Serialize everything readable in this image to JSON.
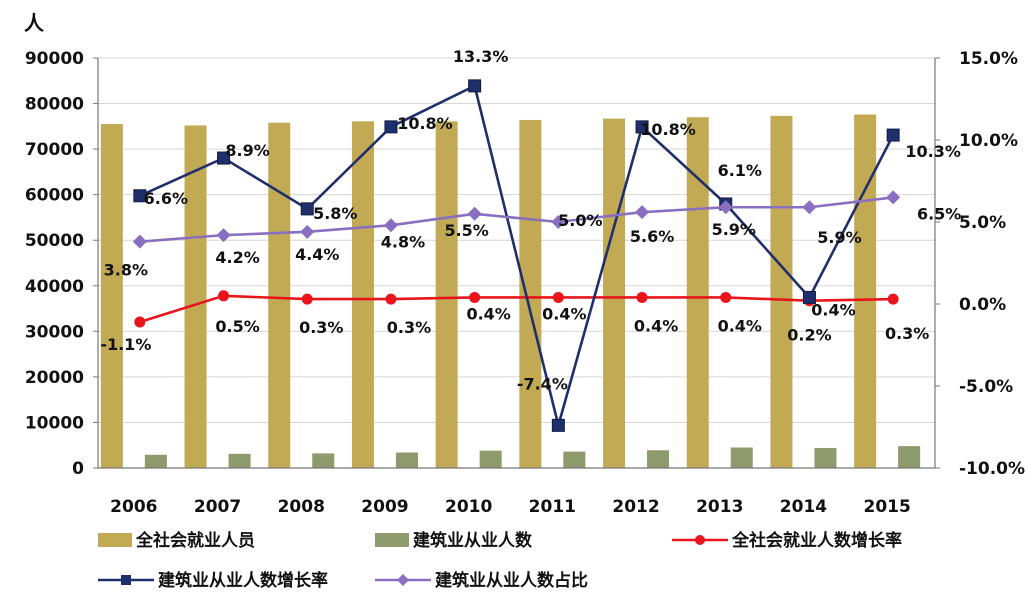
{
  "chart_data": {
    "type": "bar",
    "y_left_unit": "人",
    "categories": [
      "2006",
      "2007",
      "2008",
      "2009",
      "2010",
      "2011",
      "2012",
      "2013",
      "2014",
      "2015"
    ],
    "y_left_range": [
      0,
      90000
    ],
    "y_left_ticks": [
      "0",
      "10000",
      "20000",
      "30000",
      "40000",
      "50000",
      "60000",
      "70000",
      "80000",
      "90000"
    ],
    "y_right_range": [
      -10,
      15
    ],
    "y_right_ticks": [
      "-10.0%",
      "-5.0%",
      "0.0%",
      "5.0%",
      "10.0%",
      "15.0%"
    ],
    "grid": true,
    "legend_position": "bottom",
    "series": [
      {
        "name": "全社会就业人员",
        "kind": "bar",
        "axis": "left",
        "color": "#c2aa55",
        "values": [
          75500,
          75200,
          75800,
          76100,
          76100,
          76400,
          76700,
          77000,
          77300,
          77600
        ]
      },
      {
        "name": "建筑业从业人数",
        "kind": "bar",
        "axis": "left",
        "color": "#8d9a6b",
        "values": [
          2900,
          3100,
          3200,
          3400,
          3800,
          3600,
          3900,
          4500,
          4400,
          4800
        ]
      },
      {
        "name": "全社会就业人数增长率",
        "kind": "line",
        "axis": "right",
        "color": "#e8161c",
        "marker": "circle",
        "values": [
          -1.1,
          0.5,
          0.3,
          0.3,
          0.4,
          0.4,
          0.4,
          0.4,
          0.2,
          0.3
        ],
        "labels": [
          "-1.1%",
          "0.5%",
          "0.3%",
          "0.3%",
          "0.4%",
          "0.4%",
          "0.4%",
          "0.4%",
          "0.2%",
          "0.3%"
        ]
      },
      {
        "name": "建筑业从业人数增长率",
        "kind": "line",
        "axis": "right",
        "color": "#1f2f6b",
        "marker": "square",
        "values": [
          6.6,
          8.9,
          5.8,
          10.8,
          13.3,
          -7.4,
          10.8,
          6.1,
          0.4,
          10.3
        ],
        "labels": [
          "6.6%",
          "8.9%",
          "5.8%",
          "10.8%",
          "13.3%",
          "-7.4%",
          "10.8%",
          "6.1%",
          "0.4%",
          "10.3%"
        ]
      },
      {
        "name": "建筑业从业人数占比",
        "kind": "line",
        "axis": "right",
        "color": "#8a6fc0",
        "marker": "diamond",
        "values": [
          3.8,
          4.2,
          4.4,
          4.8,
          5.5,
          5.0,
          5.6,
          5.9,
          5.9,
          6.5
        ],
        "labels": [
          "3.8%",
          "4.2%",
          "4.4%",
          "4.8%",
          "5.5%",
          "5.0%",
          "5.6%",
          "5.9%",
          "5.9%",
          "6.5%"
        ]
      }
    ]
  }
}
